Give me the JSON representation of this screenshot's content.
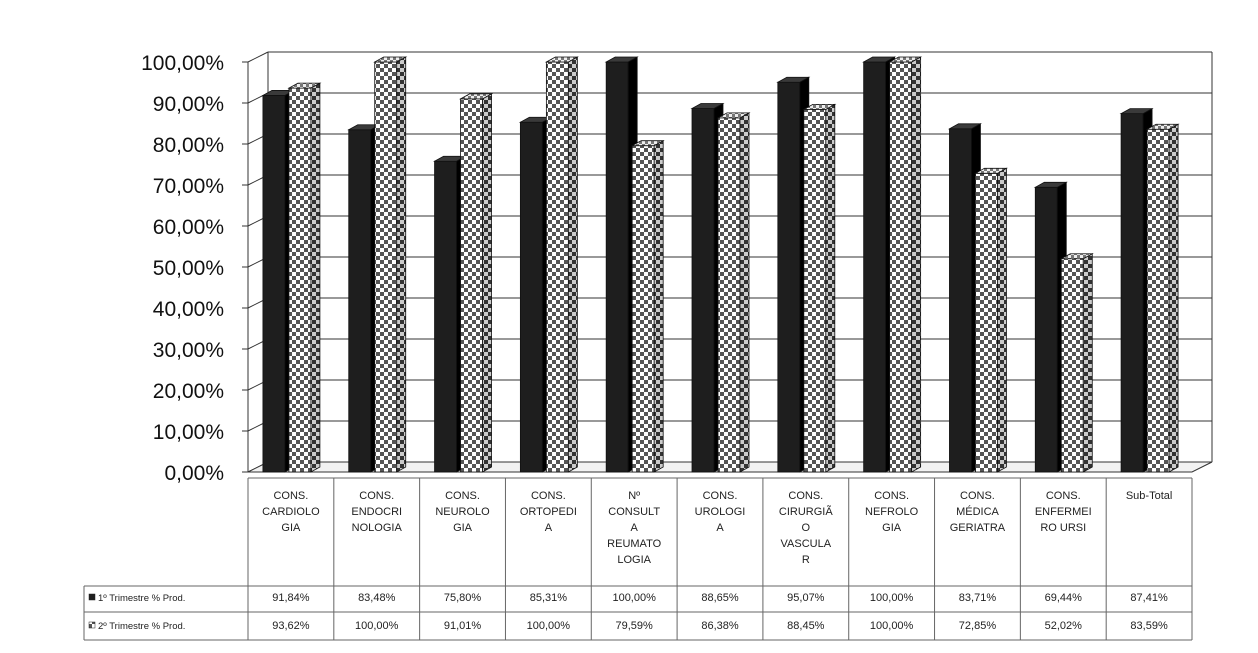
{
  "chart_data": {
    "type": "bar",
    "title": "",
    "xlabel": "",
    "ylabel": "",
    "ylim": [
      0,
      100
    ],
    "y_ticks": [
      "0,00%",
      "10,00%",
      "20,00%",
      "30,00%",
      "40,00%",
      "50,00%",
      "60,00%",
      "70,00%",
      "80,00%",
      "90,00%",
      "100,00%"
    ],
    "grid": true,
    "legend": "in-table",
    "categories": [
      [
        "CONS.",
        "CARDIOLO",
        "GIA"
      ],
      [
        "CONS.",
        "ENDOCRI",
        "NOLOGIA"
      ],
      [
        "CONS.",
        "NEUROLO",
        "GIA"
      ],
      [
        "CONS.",
        "ORTOPEDI",
        "A"
      ],
      [
        "Nº",
        "CONSULT",
        "A",
        "REUMATO",
        "LOGIA"
      ],
      [
        "CONS.",
        "UROLOGI",
        "A"
      ],
      [
        "CONS.",
        "CIRURGIÃ",
        "O",
        "VASCULA",
        "R"
      ],
      [
        "CONS.",
        "NEFROLO",
        "GIA"
      ],
      [
        "CONS.",
        "MÉDICA",
        "GERIATRA"
      ],
      [
        "CONS.",
        "ENFERMEI",
        "RO URSI"
      ],
      [
        "Sub-Total"
      ]
    ],
    "series": [
      {
        "name": "1º Trimestre % Prod.",
        "values": [
          91.84,
          83.48,
          75.8,
          85.31,
          100,
          88.65,
          95.07,
          100,
          83.71,
          69.44,
          87.41
        ],
        "labels": [
          "91,84%",
          "83,48%",
          "75,80%",
          "85,31%",
          "100,00%",
          "88,65%",
          "95,07%",
          "100,00%",
          "83,71%",
          "69,44%",
          "87,41%"
        ],
        "color": "#1e1e1e"
      },
      {
        "name": "2º Trimestre % Prod.",
        "values": [
          93.62,
          100,
          91.01,
          100,
          79.59,
          86.38,
          88.45,
          100,
          72.85,
          52.02,
          83.59
        ],
        "labels": [
          "93,62%",
          "100,00%",
          "91,01%",
          "100,00%",
          "79,59%",
          "86,38%",
          "88,45%",
          "100,00%",
          "72,85%",
          "52,02%",
          "83,59%"
        ],
        "color": "#ffffff",
        "pattern": "checker"
      }
    ]
  }
}
